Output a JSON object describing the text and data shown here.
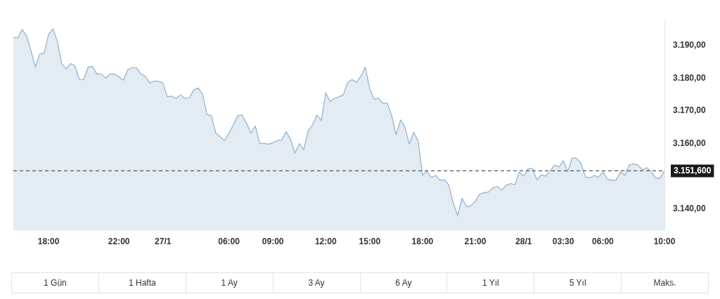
{
  "chart_data": {
    "type": "area",
    "categories": [
      null,
      null,
      null,
      null,
      null,
      null,
      null,
      null,
      "18:00",
      null,
      null,
      null,
      null,
      null,
      null,
      null,
      null,
      null,
      null,
      null,
      null,
      null,
      null,
      null,
      "22:00",
      null,
      null,
      null,
      null,
      null,
      null,
      null,
      null,
      null,
      "27/1",
      null,
      null,
      null,
      null,
      null,
      null,
      null,
      null,
      null,
      null,
      null,
      null,
      null,
      null,
      "06:00",
      null,
      null,
      null,
      null,
      null,
      null,
      null,
      null,
      null,
      "09:00",
      null,
      null,
      null,
      null,
      null,
      null,
      null,
      null,
      null,
      null,
      null,
      "12:00",
      null,
      null,
      null,
      null,
      null,
      null,
      null,
      null,
      null,
      "15:00",
      null,
      null,
      null,
      null,
      null,
      null,
      null,
      null,
      null,
      null,
      null,
      "18:00",
      null,
      null,
      null,
      null,
      null,
      null,
      null,
      null,
      null,
      null,
      null,
      "21:00",
      null,
      null,
      null,
      null,
      null,
      null,
      null,
      null,
      null,
      null,
      "28/1",
      null,
      null,
      null,
      null,
      null,
      null,
      null,
      null,
      "03:30",
      null,
      null,
      null,
      null,
      null,
      null,
      null,
      null,
      "06:00",
      null,
      null,
      null,
      null,
      null,
      null,
      null,
      null,
      null,
      null,
      null,
      null,
      null,
      "10:00"
    ],
    "series": [
      {
        "color": "#8fb1d0",
        "values": [
          3192.6,
          3192.3,
          3194.9,
          3193.0,
          3188.5,
          3183.4,
          3187.4,
          3187.7,
          3193.4,
          3195.1,
          3191.3,
          3184.5,
          3182.8,
          3184.5,
          3183.8,
          3179.6,
          3179.6,
          3183.4,
          3183.6,
          3181.3,
          3181.3,
          3180.0,
          3181.3,
          3181.3,
          3180.4,
          3179.4,
          3182.6,
          3183.2,
          3183.2,
          3181.3,
          3180.6,
          3178.5,
          3179.1,
          3179.1,
          3178.5,
          3174.3,
          3174.5,
          3173.8,
          3174.9,
          3173.8,
          3174.0,
          3176.4,
          3177.0,
          3175.1,
          3168.9,
          3168.5,
          3163.2,
          3162.1,
          3160.9,
          3163.2,
          3165.7,
          3168.5,
          3168.7,
          3166.2,
          3163.2,
          3165.3,
          3160.0,
          3160.0,
          3159.8,
          3160.2,
          3160.9,
          3161.1,
          3163.6,
          3161.3,
          3157.0,
          3160.0,
          3158.1,
          3163.8,
          3165.7,
          3168.7,
          3167.0,
          3175.5,
          3172.8,
          3173.8,
          3174.3,
          3174.9,
          3178.7,
          3179.6,
          3178.7,
          3180.6,
          3183.4,
          3176.8,
          3173.6,
          3173.8,
          3172.3,
          3172.3,
          3168.5,
          3162.6,
          3167.2,
          3165.1,
          3159.8,
          3163.4,
          3160.9,
          3150.2,
          3151.5,
          3149.6,
          3150.2,
          3148.7,
          3148.9,
          3147.2,
          3141.7,
          3137.9,
          3143.2,
          3140.6,
          3140.9,
          3142.3,
          3144.5,
          3144.9,
          3145.1,
          3146.4,
          3146.8,
          3145.7,
          3147.2,
          3147.7,
          3147.4,
          3151.3,
          3150.0,
          3152.3,
          3152.3,
          3148.9,
          3150.4,
          3150.0,
          3151.5,
          3153.4,
          3152.8,
          3154.7,
          3151.3,
          3155.5,
          3155.5,
          3154.0,
          3149.8,
          3149.4,
          3150.2,
          3149.6,
          3151.3,
          3149.1,
          3148.7,
          3148.7,
          3151.3,
          3150.2,
          3153.4,
          3153.8,
          3153.4,
          3151.9,
          3152.6,
          3151.3,
          3149.4,
          3149.4,
          3151.6
        ]
      }
    ],
    "ylim": [
      3133.5,
      3197.5
    ],
    "yticks": [
      {
        "value": 3140,
        "label": "3.140,00"
      },
      {
        "value": 3160,
        "label": "3.160,00"
      },
      {
        "value": 3170,
        "label": "3.170,00"
      },
      {
        "value": 3180,
        "label": "3.180,00"
      },
      {
        "value": 3190,
        "label": "3.190,00"
      }
    ],
    "ref_lines": [
      {
        "axis": "y",
        "value": 3151.6,
        "label": "3.151,600",
        "color": "#555555",
        "line_style": "dashed"
      }
    ],
    "grid": false,
    "legend": false,
    "marker": "none",
    "line_style": "solid",
    "annotations": [
      "1 Gün",
      "1 Hafta",
      "1 Ay",
      "3 Ay",
      "6 Ay",
      "1 Yıl",
      "5 Yıl",
      "Maks."
    ]
  }
}
